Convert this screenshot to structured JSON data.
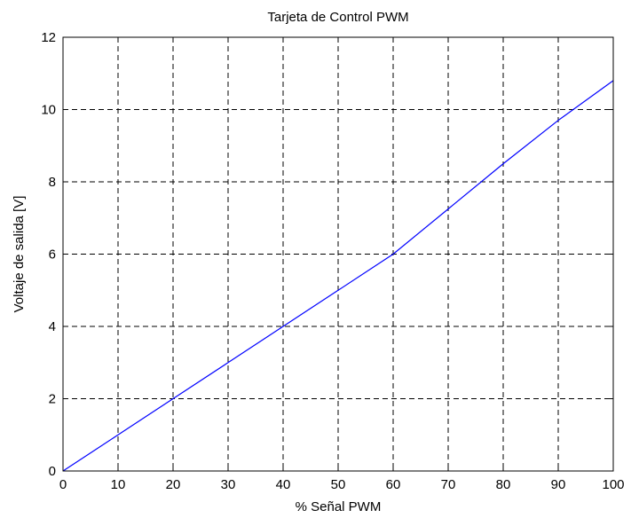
{
  "chart_data": {
    "type": "line",
    "title": "Tarjeta de Control PWM",
    "xlabel": "% Señal PWM",
    "ylabel": "Voltaje de salida [V]",
    "xlim": [
      0,
      100
    ],
    "ylim": [
      0,
      12
    ],
    "xticks": [
      0,
      10,
      20,
      30,
      40,
      50,
      60,
      70,
      80,
      90,
      100
    ],
    "yticks": [
      0,
      2,
      4,
      6,
      8,
      10,
      12
    ],
    "grid": true,
    "grid_style": "dashed",
    "series": [
      {
        "color": "#0000ff",
        "x": [
          0,
          10,
          20,
          30,
          40,
          50,
          60,
          70,
          80,
          90,
          100
        ],
        "y": [
          0,
          1.0,
          2.0,
          3.0,
          4.0,
          5.0,
          6.0,
          7.25,
          8.5,
          9.7,
          10.8
        ]
      }
    ]
  }
}
